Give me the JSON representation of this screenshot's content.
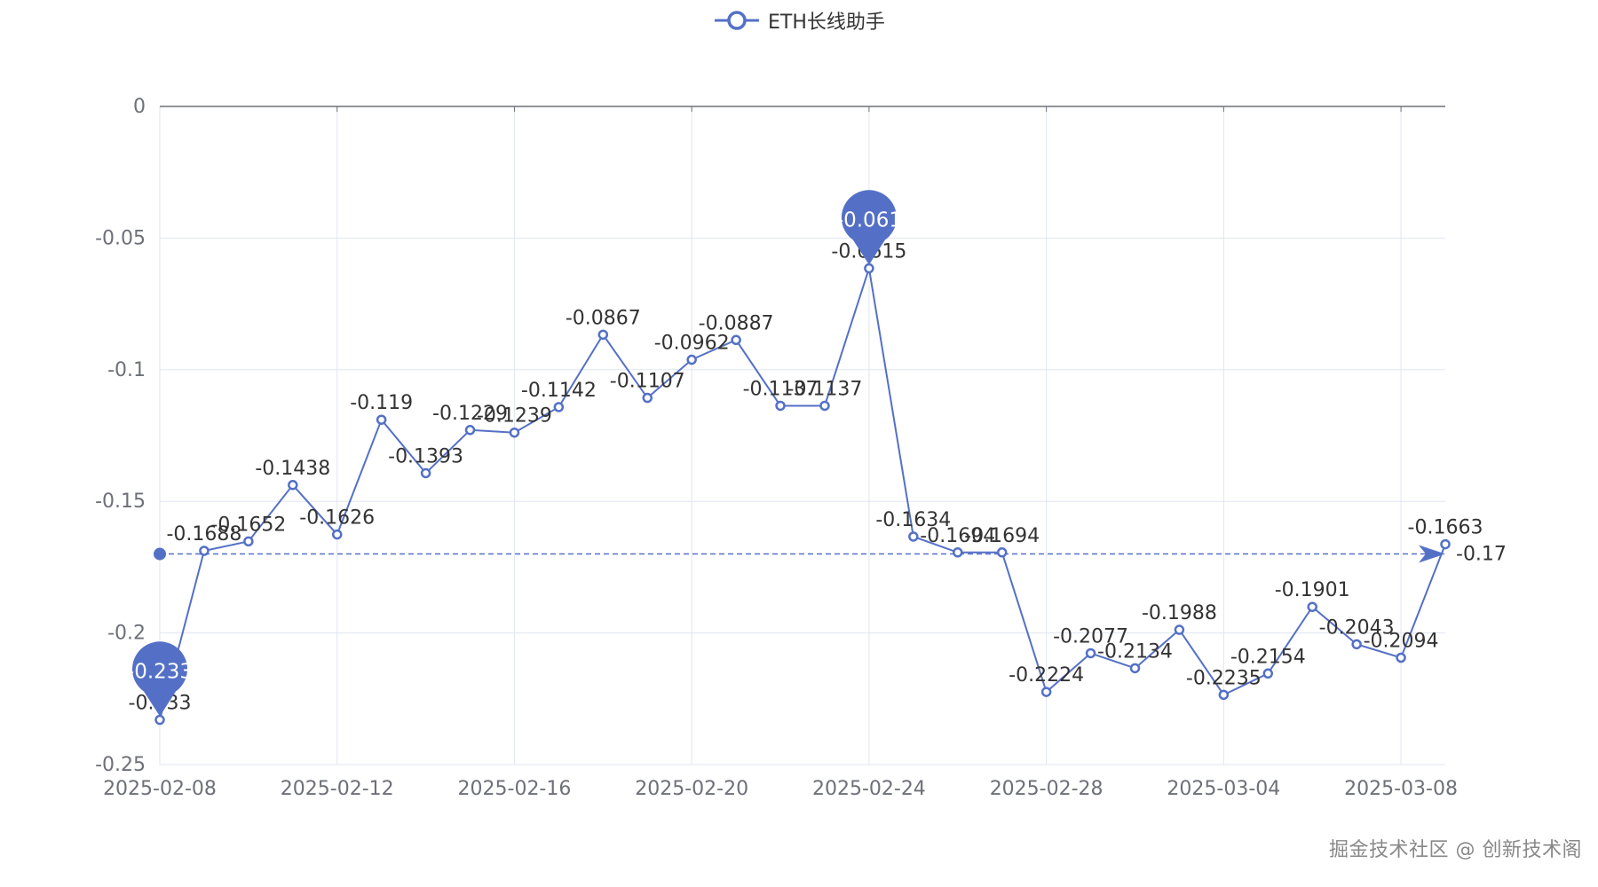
{
  "chart_data": {
    "type": "line",
    "title": "",
    "legend": {
      "label": "ETH长线助手",
      "position": "top-center"
    },
    "x_tick_labels": [
      "2025-02-08",
      "2025-02-12",
      "2025-02-16",
      "2025-02-20",
      "2025-02-24",
      "2025-02-28",
      "2025-03-04",
      "2025-03-08"
    ],
    "y_tick_labels": [
      "0",
      "-0.05",
      "-0.1",
      "-0.15",
      "-0.2",
      "-0.25"
    ],
    "ylim": [
      -0.25,
      0
    ],
    "grid": true,
    "series": [
      {
        "name": "ETH长线助手",
        "x": [
          "2025-02-08",
          "2025-02-09",
          "2025-02-10",
          "2025-02-11",
          "2025-02-12",
          "2025-02-13",
          "2025-02-14",
          "2025-02-15",
          "2025-02-16",
          "2025-02-17",
          "2025-02-18",
          "2025-02-19",
          "2025-02-20",
          "2025-02-21",
          "2025-02-22",
          "2025-02-23",
          "2025-02-24",
          "2025-02-25",
          "2025-02-26",
          "2025-02-27",
          "2025-02-28",
          "2025-03-01",
          "2025-03-02",
          "2025-03-03",
          "2025-03-04",
          "2025-03-05",
          "2025-03-06",
          "2025-03-07",
          "2025-03-08",
          "2025-03-09"
        ],
        "values": [
          -0.233,
          -0.1688,
          -0.1652,
          -0.1438,
          -0.1626,
          -0.119,
          -0.1393,
          -0.1229,
          -0.1239,
          -0.1142,
          -0.0867,
          -0.1107,
          -0.0962,
          -0.0887,
          -0.1137,
          -0.1137,
          -0.0615,
          -0.1634,
          -0.1694,
          -0.1694,
          -0.2224,
          -0.2077,
          -0.2134,
          -0.1988,
          -0.2235,
          -0.2154,
          -0.1901,
          -0.2043,
          -0.2094,
          -0.1663
        ],
        "data_labels": [
          "-0.233",
          "-0.1688",
          "-0.1652",
          "-0.1438",
          "-0.1626",
          "-0.119",
          "-0.1393",
          "-0.1229",
          "-0.1239",
          "-0.1142",
          "-0.0867",
          "-0.1107",
          "-0.0962",
          "-0.0887",
          "-0.1137",
          "-0.1137",
          "-0.0615",
          "-0.1634",
          "-0.1694",
          "-0.1694",
          "-0.2224",
          "-0.2077",
          "-0.2134",
          "-0.1988",
          "-0.2235",
          "-0.2154",
          "-0.1901",
          "-0.2043",
          "-0.2094",
          "-0.1663"
        ]
      }
    ],
    "mark_points": [
      {
        "name": "max",
        "index": 16,
        "label": "-0.061"
      },
      {
        "name": "min",
        "index": 0,
        "label": "-0.233"
      }
    ],
    "mark_line": {
      "value": -0.17,
      "label": "-0.17"
    }
  },
  "watermark": "掘金技术社区 @ 创新技术阁",
  "colors": {
    "series": "#5470c6",
    "grid": "#e0e6f1",
    "axis": "#6e7079",
    "text": "#333333"
  }
}
